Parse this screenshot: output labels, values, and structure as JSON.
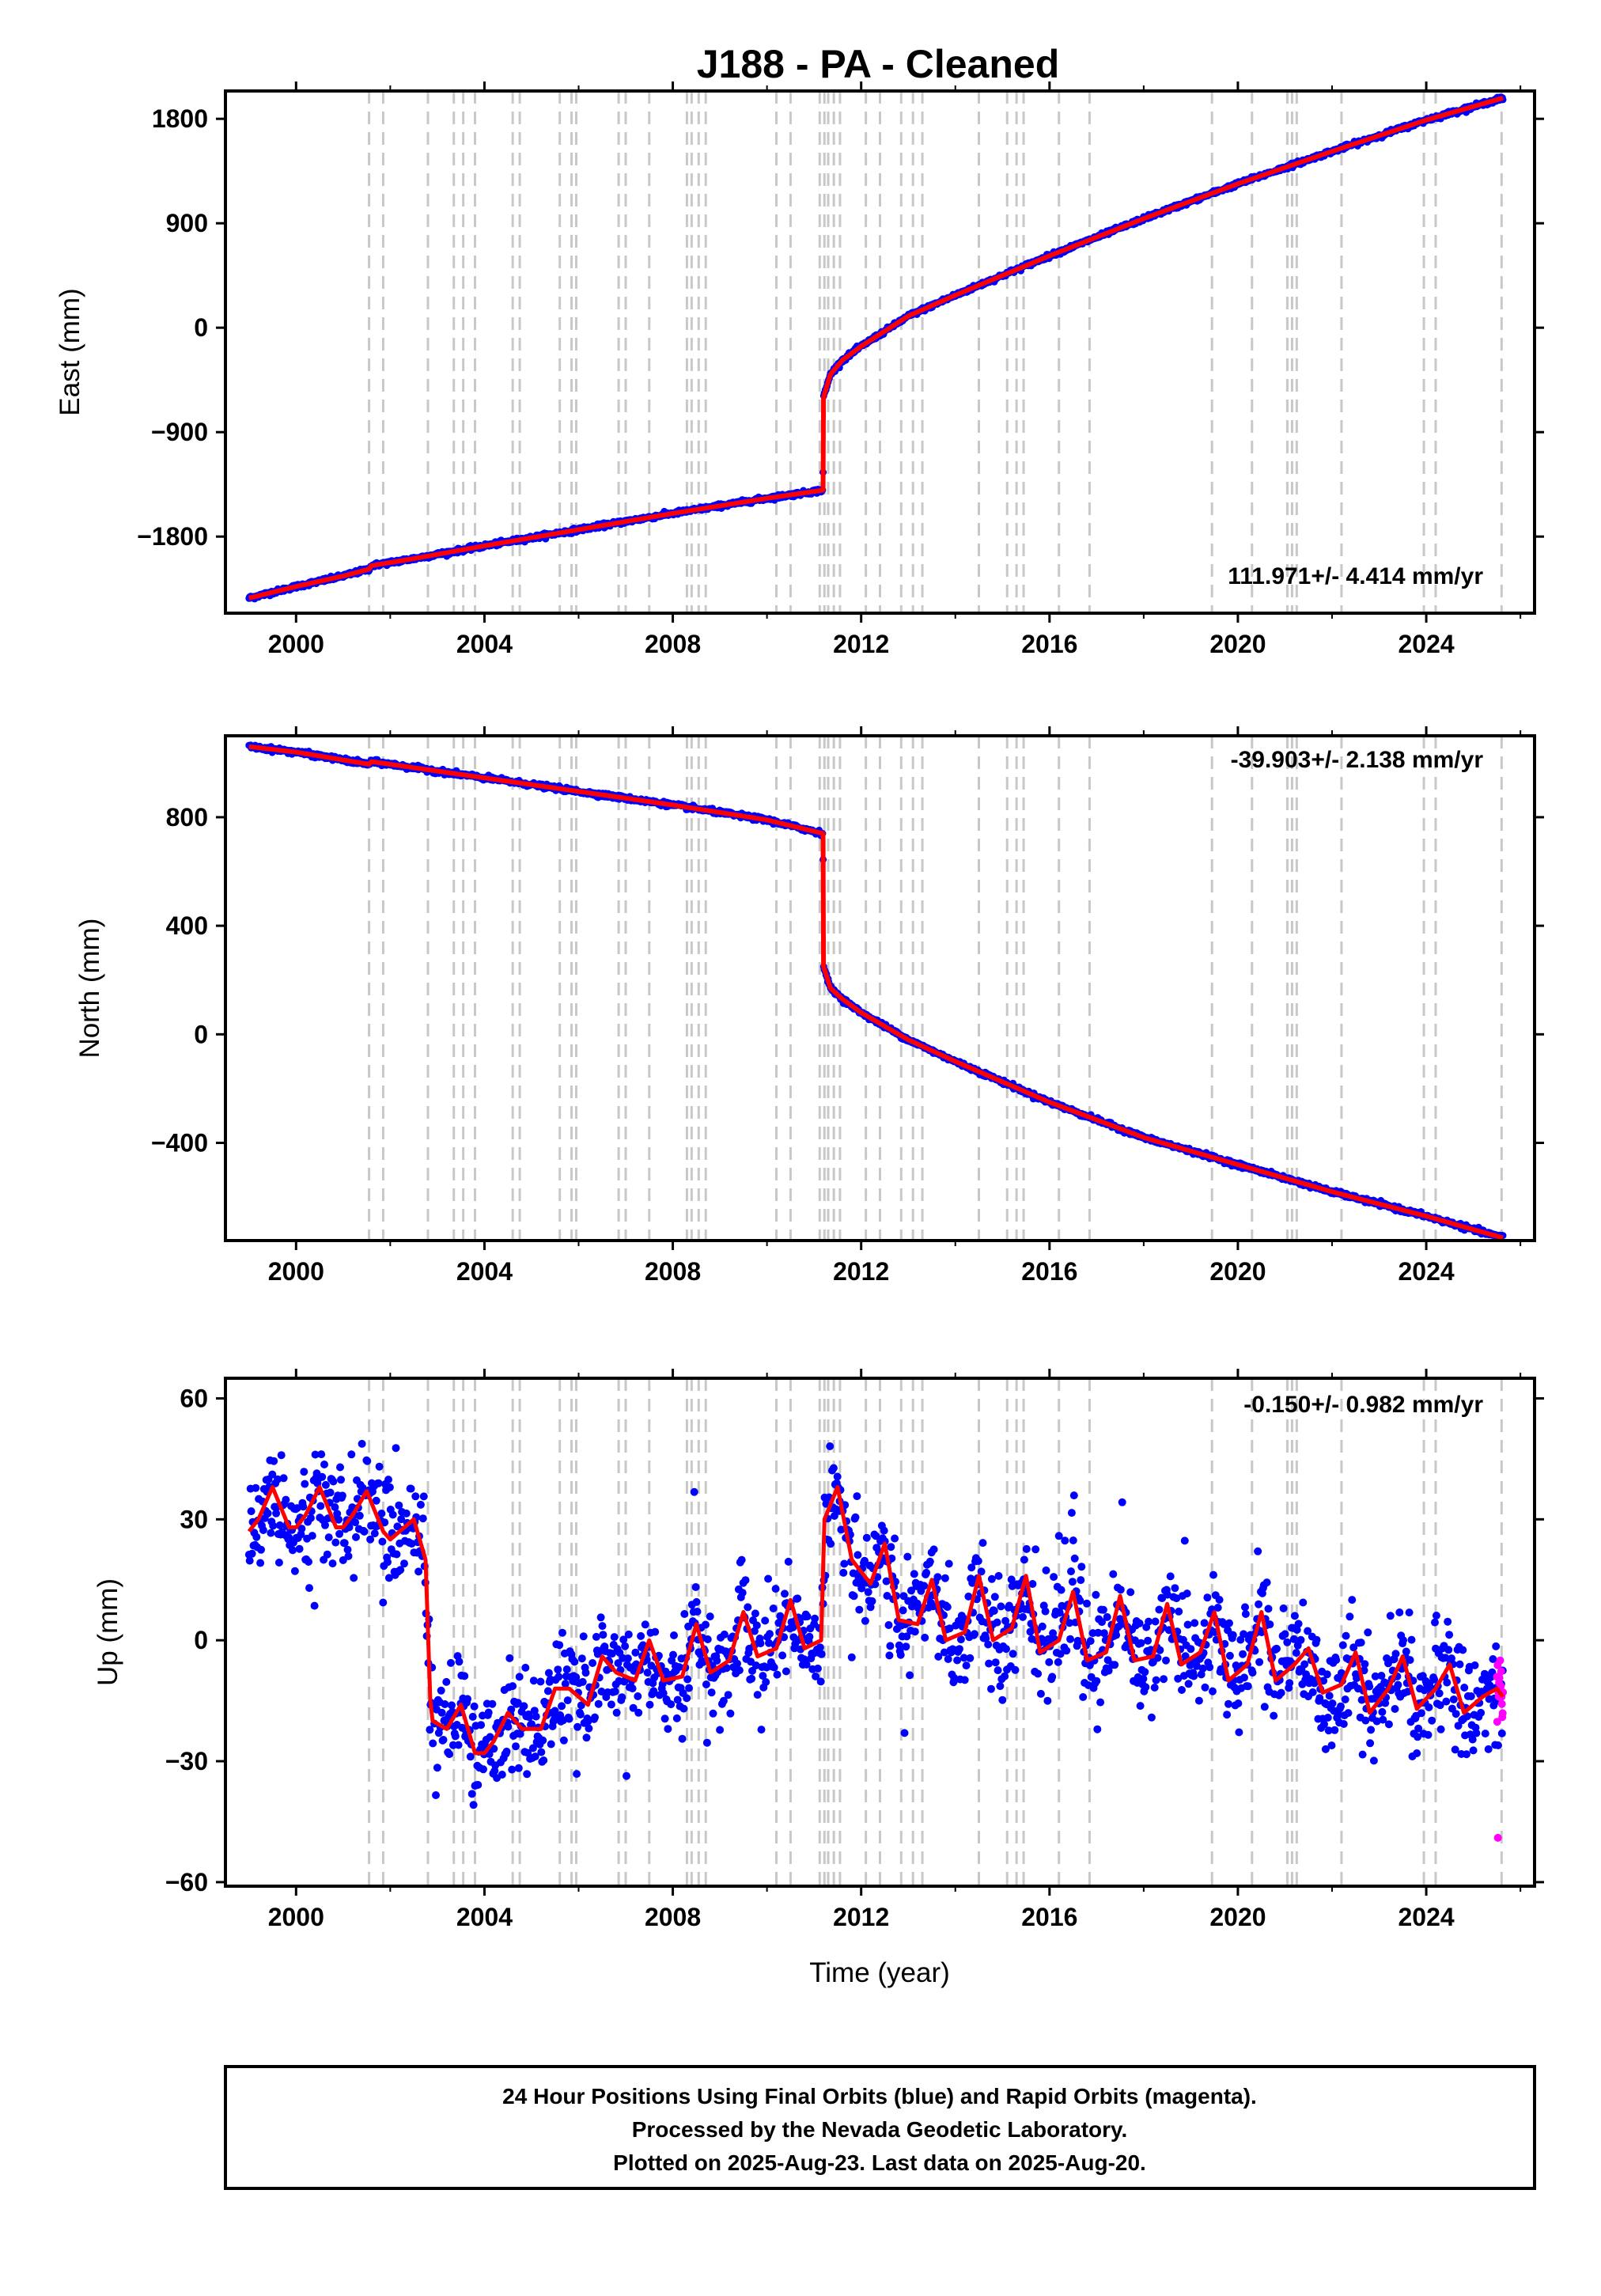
{
  "chart_data": {
    "type": "scatter",
    "title": "J188  - PA - Cleaned",
    "xlabel": "Time (year)",
    "xlim": [
      1998.5,
      2026.3
    ],
    "x_ticks": [
      2000,
      2004,
      2008,
      2012,
      2016,
      2020,
      2024
    ],
    "x_tick_labels": [
      "2000",
      "2004",
      "2008",
      "2012",
      "2016",
      "2020",
      "2024"
    ],
    "equipment_change_years": [
      2001.55,
      2001.85,
      2002.8,
      2003.35,
      2003.55,
      2003.8,
      2004.6,
      2004.75,
      2005.6,
      2005.85,
      2005.95,
      2006.85,
      2007.0,
      2007.5,
      2008.3,
      2008.4,
      2008.55,
      2008.7,
      2010.2,
      2010.5,
      2011.12,
      2011.22,
      2011.3,
      2011.42,
      2011.55,
      2012.1,
      2012.4,
      2012.85,
      2013.1,
      2013.3,
      2014.5,
      2015.1,
      2015.3,
      2015.45,
      2016.2,
      2016.85,
      2019.45,
      2020.3,
      2021.05,
      2021.15,
      2021.25,
      2022.2,
      2023.95,
      2024.2,
      2025.6
    ],
    "series_colors": {
      "final": "#0000ff",
      "rapid": "#ff00ff",
      "model": "#ff0000",
      "change": "#c8c8c8"
    },
    "panels": [
      {
        "name": "east",
        "ylabel": "East (mm)",
        "ylim": [
          -2460,
          2040
        ],
        "y_ticks": [
          1800,
          900,
          0,
          -900,
          -1800
        ],
        "y_tick_labels": [
          "1800",
          "900",
          "0",
          "−900",
          "−1800"
        ],
        "rate_label": "111.971+/- 4.414 mm/yr",
        "x": [
          1999.0,
          2000.0,
          2001.0,
          2001.55,
          2001.6,
          2002.5,
          2004.0,
          2006.0,
          2008.0,
          2010.0,
          2011.19,
          2011.2,
          2011.35,
          2011.6,
          2012.0,
          2013.0,
          2014.0,
          2016.0,
          2018.0,
          2020.0,
          2022.0,
          2024.0,
          2025.63
        ],
        "y": [
          -2330,
          -2230,
          -2140,
          -2080,
          -2050,
          -1990,
          -1880,
          -1740,
          -1600,
          -1470,
          -1400,
          -600,
          -400,
          -280,
          -160,
          100,
          280,
          620,
          940,
          1240,
          1520,
          1790,
          1980
        ]
      },
      {
        "name": "north",
        "ylabel": "North (mm)",
        "ylim": [
          -760,
          1100
        ],
        "y_ticks": [
          800,
          400,
          0,
          -400
        ],
        "y_tick_labels": [
          "800",
          "400",
          "0",
          "−400"
        ],
        "rate_label": "-39.903+/- 2.138 mm/yr",
        "x": [
          1999.0,
          2000.0,
          2001.55,
          2001.6,
          2003.0,
          2004.0,
          2006.0,
          2008.0,
          2010.0,
          2011.19,
          2011.2,
          2011.35,
          2011.6,
          2012.0,
          2013.0,
          2014.0,
          2016.0,
          2018.0,
          2020.0,
          2022.0,
          2024.0,
          2025.63
        ],
        "y": [
          1060,
          1040,
          995,
          1005,
          970,
          945,
          895,
          845,
          790,
          740,
          250,
          170,
          130,
          80,
          -20,
          -100,
          -250,
          -380,
          -480,
          -580,
          -670,
          -750
        ]
      },
      {
        "name": "up",
        "ylabel": "Up (mm)",
        "ylim": [
          -61,
          65
        ],
        "y_ticks": [
          60,
          30,
          0,
          -30,
          -60
        ],
        "y_tick_labels": [
          "60",
          "30",
          "0",
          "−30",
          "−60"
        ],
        "rate_label": "-0.150+/- 0.982 mm/yr",
        "x": [
          1999.0,
          1999.2,
          1999.5,
          1999.85,
          2000.0,
          2000.2,
          2000.5,
          2000.85,
          2001.0,
          2001.2,
          2001.5,
          2001.85,
          2002.0,
          2002.2,
          2002.5,
          2002.75,
          2002.85,
          2002.9,
          2003.2,
          2003.5,
          2003.8,
          2004.0,
          2004.2,
          2004.5,
          2004.8,
          2005.2,
          2005.5,
          2005.8,
          2006.2,
          2006.5,
          2006.8,
          2007.2,
          2007.5,
          2007.8,
          2008.2,
          2008.5,
          2008.8,
          2009.2,
          2009.5,
          2009.8,
          2010.2,
          2010.5,
          2010.8,
          2011.15,
          2011.22,
          2011.5,
          2011.8,
          2012.2,
          2012.5,
          2012.8,
          2013.2,
          2013.5,
          2013.8,
          2014.2,
          2014.5,
          2014.8,
          2015.2,
          2015.5,
          2015.8,
          2016.2,
          2016.5,
          2016.8,
          2017.2,
          2017.5,
          2017.8,
          2018.2,
          2018.5,
          2018.8,
          2019.2,
          2019.5,
          2019.8,
          2020.2,
          2020.5,
          2020.8,
          2021.2,
          2021.5,
          2021.8,
          2022.2,
          2022.5,
          2022.8,
          2023.2,
          2023.5,
          2023.8,
          2024.2,
          2024.5,
          2024.8,
          2025.2,
          2025.5,
          2025.63
        ],
        "y": [
          27,
          30,
          38,
          28,
          28,
          31,
          38,
          28,
          28,
          31,
          37,
          27,
          25,
          27,
          30,
          20,
          -15,
          -20,
          -22,
          -16,
          -28,
          -28,
          -25,
          -18,
          -22,
          -22,
          -12,
          -12,
          -16,
          -4,
          -8,
          -10,
          0,
          -10,
          -9,
          4,
          -8,
          -5,
          7,
          -4,
          -2,
          10,
          -2,
          0,
          30,
          38,
          20,
          14,
          24,
          5,
          4,
          15,
          0,
          2,
          16,
          0,
          3,
          16,
          -3,
          0,
          12,
          -5,
          -3,
          11,
          -5,
          -4,
          9,
          -6,
          -3,
          7,
          -10,
          -6,
          7,
          -10,
          -6,
          -2,
          -13,
          -11,
          -3,
          -18,
          -12,
          -4,
          -17,
          -12,
          -6,
          -18,
          -14,
          -12,
          -14
        ]
      }
    ],
    "rapid_orbit_points": {
      "panel": "up",
      "x_range": [
        2025.5,
        2025.63
      ],
      "y_range": [
        -49,
        -5
      ]
    }
  },
  "footer": {
    "line1": "24 Hour Positions Using Final Orbits (blue) and Rapid Orbits (magenta).",
    "line2": "Processed by the Nevada Geodetic Laboratory.",
    "line3": "Plotted on 2025-Aug-23. Last data on 2025-Aug-20."
  }
}
